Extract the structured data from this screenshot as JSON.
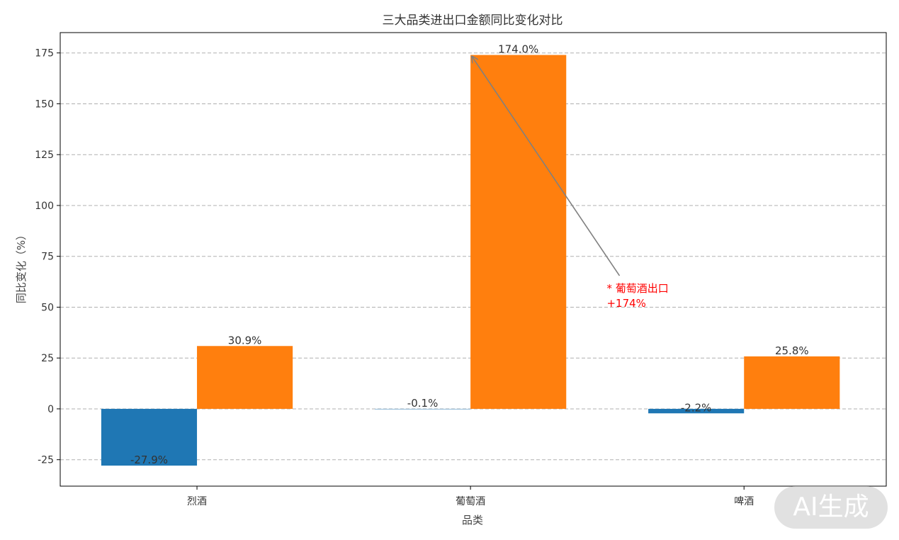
{
  "chart_data": {
    "type": "bar",
    "title": "三大品类进出口金额同比变化对比",
    "xlabel": "品类",
    "ylabel": "同比变化（%）",
    "categories": [
      "烈酒",
      "葡萄酒",
      "啤酒"
    ],
    "series": [
      {
        "values": [
          -27.9,
          -0.1,
          -2.2
        ],
        "labels": [
          "-27.9%",
          "-0.1%",
          "-2.2%"
        ],
        "color": "#1f77b4"
      },
      {
        "values": [
          30.9,
          174.0,
          25.8
        ],
        "labels": [
          "30.9%",
          "174.0%",
          "25.8%"
        ],
        "color": "#ff7f0e"
      }
    ],
    "ylim": [
      -38,
      185
    ],
    "yticks": [
      -25,
      0,
      25,
      50,
      75,
      100,
      125,
      150,
      175
    ],
    "grid": "y-dashed",
    "annotation": {
      "lines": [
        "* 葡萄酒出口",
        "+174%"
      ],
      "color": "#ff0000",
      "arrow_color": "#808080",
      "target": {
        "category": "葡萄酒",
        "series": 1,
        "y": 174
      },
      "text_anchor": {
        "category": "葡萄酒",
        "offset": 0.55,
        "y": 55
      }
    },
    "highlight_label_color": "#ff0000"
  },
  "badge": {
    "text": "AI生成"
  }
}
